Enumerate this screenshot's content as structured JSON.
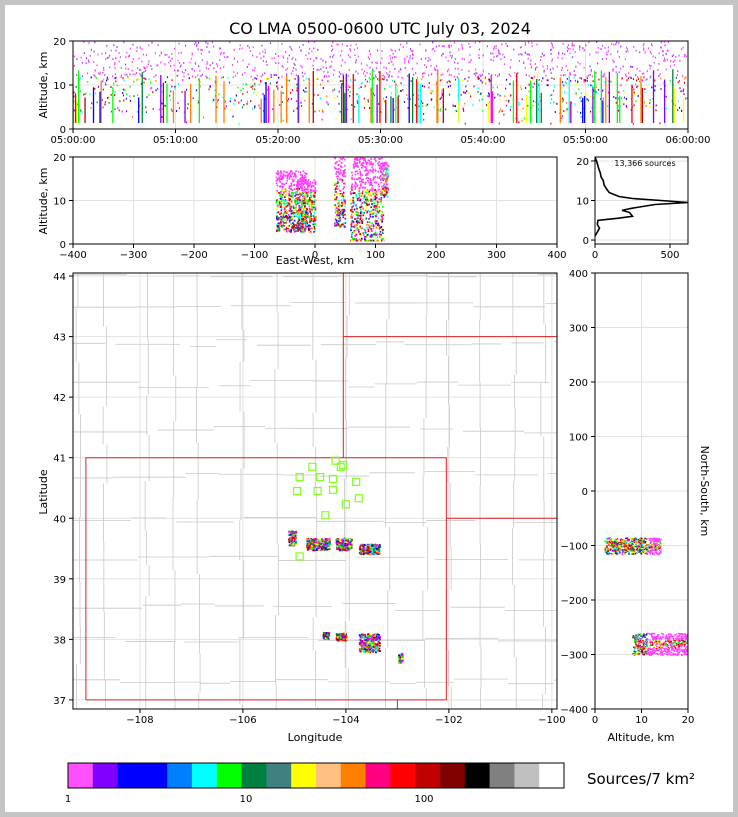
{
  "title": "CO LMA 0500-0600 UTC July 03, 2024",
  "colors": {
    "background": "#c4c4c4",
    "grid": "#e3e3e3",
    "state_border": "#e02020",
    "county_border": "#c8c8c8",
    "station_marker": "#80ff20"
  },
  "chart_data": [
    {
      "id": "alt-vs-time",
      "type": "scatter",
      "ylabel": "Altitude, km",
      "ylim": [
        0,
        20
      ],
      "yticks": [
        "0",
        "10",
        "20"
      ],
      "xlim": [
        0,
        60
      ],
      "xticks": [
        "05:00:00",
        "05:10:00",
        "05:20:00",
        "05:30:00",
        "05:40:00",
        "05:50:00",
        "06:00:00"
      ],
      "grid": true
    },
    {
      "id": "alt-vs-ew",
      "type": "heatmap",
      "xlabel": "East-West, km",
      "ylabel": "Altitude, km",
      "xlim": [
        -400,
        400
      ],
      "ylim": [
        0,
        20
      ],
      "xticks": [
        "−400",
        "−300",
        "−200",
        "−100",
        "0",
        "100",
        "200",
        "300",
        "400"
      ],
      "yticks": [
        "0",
        "10",
        "20"
      ],
      "grid": true
    },
    {
      "id": "alt-histogram",
      "type": "line",
      "annotation": "13,366 sources",
      "xlim": [
        0,
        620
      ],
      "ylim": [
        -1,
        21
      ],
      "xticks": [
        "0",
        "500"
      ],
      "yticks": [
        "0",
        "10",
        "20"
      ],
      "profile": [
        [
          0,
          1
        ],
        [
          15,
          2
        ],
        [
          30,
          3
        ],
        [
          15,
          4
        ],
        [
          20,
          5
        ],
        [
          150,
          5.5
        ],
        [
          250,
          6
        ],
        [
          230,
          7
        ],
        [
          180,
          7.5
        ],
        [
          240,
          8
        ],
        [
          400,
          9
        ],
        [
          620,
          9.5
        ],
        [
          440,
          10
        ],
        [
          250,
          10.5
        ],
        [
          160,
          11
        ],
        [
          95,
          12
        ],
        [
          75,
          13
        ],
        [
          60,
          14
        ],
        [
          55,
          15
        ],
        [
          40,
          16
        ],
        [
          35,
          17
        ],
        [
          25,
          18
        ],
        [
          18,
          19
        ],
        [
          10,
          20
        ],
        [
          0,
          21
        ]
      ],
      "grid": true
    },
    {
      "id": "plan-view",
      "type": "heatmap",
      "xlabel": "Longitude",
      "ylabel": "Latitude",
      "xlim": [
        -109.3,
        -99.9
      ],
      "ylim": [
        36.85,
        44.05
      ],
      "xticks": [
        "−108",
        "−106",
        "−104",
        "−102",
        "−100"
      ],
      "yticks": [
        "37",
        "38",
        "39",
        "40",
        "41",
        "42",
        "43",
        "44"
      ],
      "stations": [
        [
          -104.2,
          40.95
        ],
        [
          -104.65,
          40.85
        ],
        [
          -104.1,
          40.85
        ],
        [
          -104.05,
          40.88
        ],
        [
          -104.9,
          40.68
        ],
        [
          -104.5,
          40.68
        ],
        [
          -104.25,
          40.65
        ],
        [
          -103.8,
          40.6
        ],
        [
          -104.25,
          40.47
        ],
        [
          -104.55,
          40.45
        ],
        [
          -104.95,
          40.45
        ],
        [
          -103.75,
          40.33
        ],
        [
          -104.0,
          40.23
        ],
        [
          -104.4,
          40.05
        ],
        [
          -104.9,
          39.37
        ]
      ],
      "clusters": [
        {
          "lon": -104.55,
          "lat": 39.58,
          "w": 0.45,
          "h": 0.1
        },
        {
          "lon": -104.05,
          "lat": 39.58,
          "w": 0.3,
          "h": 0.1
        },
        {
          "lon": -103.55,
          "lat": 39.5,
          "w": 0.4,
          "h": 0.08
        },
        {
          "lon": -105.05,
          "lat": 39.68,
          "w": 0.15,
          "h": 0.12
        },
        {
          "lon": -103.55,
          "lat": 37.95,
          "w": 0.4,
          "h": 0.15
        },
        {
          "lon": -104.1,
          "lat": 38.05,
          "w": 0.2,
          "h": 0.06
        },
        {
          "lon": -104.4,
          "lat": 38.07,
          "w": 0.12,
          "h": 0.05
        },
        {
          "lon": -102.95,
          "lat": 37.7,
          "w": 0.08,
          "h": 0.08
        }
      ],
      "grid": true
    },
    {
      "id": "ns-vs-alt",
      "type": "heatmap",
      "xlabel": "Altitude, km",
      "ylabel": "North-South, km",
      "xlim": [
        0,
        20
      ],
      "ylim": [
        -400,
        400
      ],
      "xticks": [
        "0",
        "10",
        "20"
      ],
      "yticks": [
        "−400",
        "−300",
        "−200",
        "−100",
        "0",
        "100",
        "200",
        "300",
        "400"
      ],
      "grid": true
    }
  ],
  "colorbar": {
    "label": "Sources/7 km²",
    "ticks": [
      "1",
      "10",
      "100"
    ],
    "colors": [
      "#ff50ff",
      "#8000ff",
      "#0000ff",
      "#0000ff",
      "#0080ff",
      "#00ffff",
      "#00ff00",
      "#008040",
      "#408080",
      "#ffff00",
      "#ffc080",
      "#ff8000",
      "#ff0080",
      "#ff0000",
      "#c00000",
      "#800000",
      "#000000",
      "#808080",
      "#c0c0c0",
      "#ffffff"
    ]
  }
}
